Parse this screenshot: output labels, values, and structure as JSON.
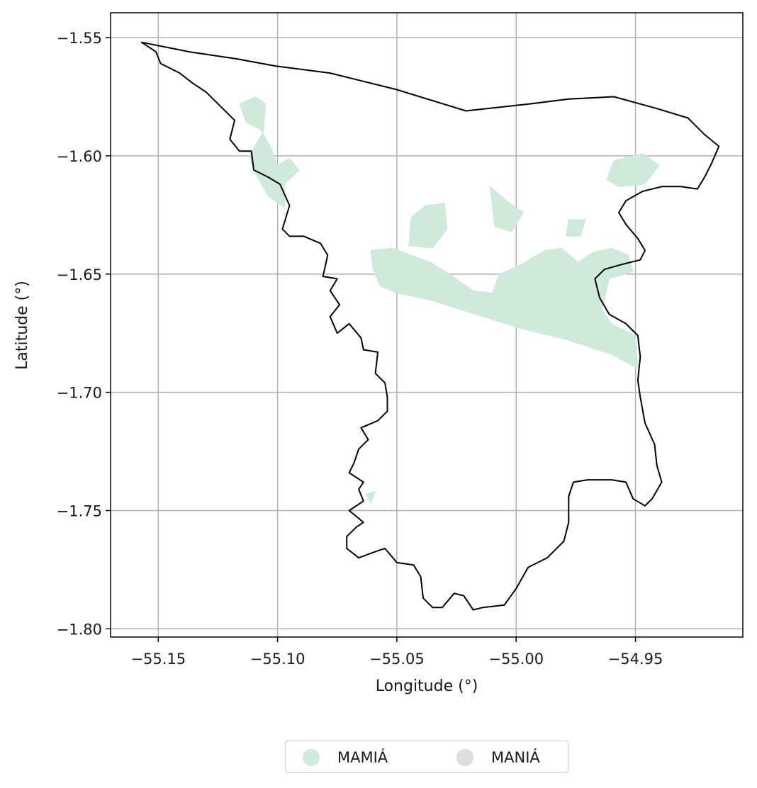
{
  "chart_data": {
    "type": "map",
    "xlabel": "Longitude (°)",
    "ylabel": "Latitude (°)",
    "xlim": [
      -55.17,
      -54.905
    ],
    "ylim": [
      -1.8035,
      -1.5395
    ],
    "x_ticks": [
      -55.15,
      -55.1,
      -55.05,
      -55.0,
      -54.95
    ],
    "x_tick_labels": [
      "−55.15",
      "−55.10",
      "−55.05",
      "−55.00",
      "−54.95"
    ],
    "y_ticks": [
      -1.55,
      -1.6,
      -1.65,
      -1.7,
      -1.75,
      -1.8
    ],
    "y_tick_labels": [
      "−1.55",
      "−1.60",
      "−1.65",
      "−1.70",
      "−1.75",
      "−1.80"
    ],
    "grid": true,
    "legend_placement": "bottom-center, below plot",
    "legend": [
      {
        "label": "MAMIÁ",
        "color": "#cfeadb"
      },
      {
        "label": "MANIÁ",
        "color": "#dddddd"
      }
    ],
    "boundary_color": "#000000",
    "boundary": [
      [
        -55.157,
        -1.552
      ],
      [
        -55.137,
        -1.556
      ],
      [
        -55.117,
        -1.559
      ],
      [
        -55.101,
        -1.562
      ],
      [
        -55.078,
        -1.565
      ],
      [
        -55.05,
        -1.572
      ],
      [
        -55.021,
        -1.581
      ],
      [
        -54.994,
        -1.578
      ],
      [
        -54.978,
        -1.576
      ],
      [
        -54.959,
        -1.575
      ],
      [
        -54.941,
        -1.58
      ],
      [
        -54.928,
        -1.584
      ],
      [
        -54.921,
        -1.591
      ],
      [
        -54.915,
        -1.596
      ],
      [
        -54.918,
        -1.603
      ],
      [
        -54.921,
        -1.609
      ],
      [
        -54.924,
        -1.614
      ],
      [
        -54.931,
        -1.613
      ],
      [
        -54.939,
        -1.613
      ],
      [
        -54.947,
        -1.615
      ],
      [
        -54.954,
        -1.619
      ],
      [
        -54.957,
        -1.624
      ],
      [
        -54.954,
        -1.629
      ],
      [
        -54.949,
        -1.635
      ],
      [
        -54.946,
        -1.64
      ],
      [
        -54.948,
        -1.644
      ],
      [
        -54.956,
        -1.646
      ],
      [
        -54.963,
        -1.648
      ],
      [
        -54.967,
        -1.652
      ],
      [
        -54.965,
        -1.66
      ],
      [
        -54.961,
        -1.667
      ],
      [
        -54.954,
        -1.671
      ],
      [
        -54.949,
        -1.676
      ],
      [
        -54.948,
        -1.685
      ],
      [
        -54.949,
        -1.695
      ],
      [
        -54.948,
        -1.702
      ],
      [
        -54.946,
        -1.713
      ],
      [
        -54.942,
        -1.722
      ],
      [
        -54.941,
        -1.731
      ],
      [
        -54.939,
        -1.738
      ],
      [
        -54.943,
        -1.745
      ],
      [
        -54.946,
        -1.748
      ],
      [
        -54.951,
        -1.745
      ],
      [
        -54.954,
        -1.738
      ],
      [
        -54.96,
        -1.737
      ],
      [
        -54.97,
        -1.737
      ],
      [
        -54.976,
        -1.738
      ],
      [
        -54.978,
        -1.744
      ],
      [
        -54.978,
        -1.755
      ],
      [
        -54.98,
        -1.763
      ],
      [
        -54.987,
        -1.77
      ],
      [
        -54.995,
        -1.774
      ],
      [
        -55.0,
        -1.783
      ],
      [
        -55.005,
        -1.79
      ],
      [
        -55.014,
        -1.791
      ],
      [
        -55.018,
        -1.792
      ],
      [
        -55.022,
        -1.786
      ],
      [
        -55.026,
        -1.785
      ],
      [
        -55.031,
        -1.791
      ],
      [
        -55.035,
        -1.791
      ],
      [
        -55.039,
        -1.787
      ],
      [
        -55.04,
        -1.778
      ],
      [
        -55.043,
        -1.773
      ],
      [
        -55.05,
        -1.772
      ],
      [
        -55.055,
        -1.766
      ],
      [
        -55.058,
        -1.767
      ],
      [
        -55.066,
        -1.77
      ],
      [
        -55.071,
        -1.766
      ],
      [
        -55.071,
        -1.761
      ],
      [
        -55.067,
        -1.757
      ],
      [
        -55.064,
        -1.755
      ],
      [
        -55.07,
        -1.75
      ],
      [
        -55.064,
        -1.746
      ],
      [
        -55.066,
        -1.741
      ],
      [
        -55.064,
        -1.738
      ],
      [
        -55.07,
        -1.734
      ],
      [
        -55.068,
        -1.73
      ],
      [
        -55.066,
        -1.724
      ],
      [
        -55.062,
        -1.72
      ],
      [
        -55.065,
        -1.715
      ],
      [
        -55.058,
        -1.712
      ],
      [
        -55.054,
        -1.708
      ],
      [
        -55.054,
        -1.702
      ],
      [
        -55.055,
        -1.696
      ],
      [
        -55.059,
        -1.692
      ],
      [
        -55.058,
        -1.683
      ],
      [
        -55.064,
        -1.682
      ],
      [
        -55.065,
        -1.677
      ],
      [
        -55.07,
        -1.671
      ],
      [
        -55.075,
        -1.675
      ],
      [
        -55.078,
        -1.668
      ],
      [
        -55.074,
        -1.663
      ],
      [
        -55.078,
        -1.657
      ],
      [
        -55.075,
        -1.652
      ],
      [
        -55.081,
        -1.651
      ],
      [
        -55.079,
        -1.642
      ],
      [
        -55.082,
        -1.637
      ],
      [
        -55.089,
        -1.634
      ],
      [
        -55.095,
        -1.634
      ],
      [
        -55.098,
        -1.631
      ],
      [
        -55.095,
        -1.621
      ],
      [
        -55.099,
        -1.612
      ],
      [
        -55.104,
        -1.609
      ],
      [
        -55.11,
        -1.606
      ],
      [
        -55.111,
        -1.598
      ],
      [
        -55.116,
        -1.598
      ],
      [
        -55.12,
        -1.593
      ],
      [
        -55.118,
        -1.585
      ],
      [
        -55.125,
        -1.578
      ],
      [
        -55.13,
        -1.573
      ],
      [
        -55.136,
        -1.569
      ],
      [
        -55.141,
        -1.565
      ],
      [
        -55.149,
        -1.561
      ],
      [
        -55.151,
        -1.556
      ],
      [
        -55.157,
        -1.552
      ]
    ],
    "regions": [
      {
        "name": "MAMIÁ",
        "color": "#cfeadb",
        "polygons": [
          [
            [
              -55.116,
              -1.578
            ],
            [
              -55.109,
              -1.575
            ],
            [
              -55.105,
              -1.578
            ],
            [
              -55.106,
              -1.59
            ],
            [
              -55.112,
              -1.6
            ],
            [
              -55.109,
              -1.608
            ],
            [
              -55.104,
              -1.617
            ],
            [
              -55.097,
              -1.622
            ],
            [
              -55.097,
              -1.612
            ],
            [
              -55.091,
              -1.606
            ],
            [
              -55.095,
              -1.601
            ],
            [
              -55.1,
              -1.604
            ],
            [
              -55.103,
              -1.596
            ],
            [
              -55.107,
              -1.589
            ],
            [
              -55.113,
              -1.586
            ]
          ],
          [
            [
              -55.061,
              -1.64
            ],
            [
              -55.052,
              -1.639
            ],
            [
              -55.044,
              -1.642
            ],
            [
              -55.036,
              -1.645
            ],
            [
              -55.028,
              -1.65
            ],
            [
              -55.018,
              -1.657
            ],
            [
              -55.01,
              -1.658
            ],
            [
              -55.007,
              -1.65
            ],
            [
              -54.998,
              -1.646
            ],
            [
              -54.988,
              -1.64
            ],
            [
              -54.981,
              -1.639
            ],
            [
              -54.974,
              -1.645
            ],
            [
              -54.968,
              -1.641
            ],
            [
              -54.96,
              -1.639
            ],
            [
              -54.953,
              -1.642
            ],
            [
              -54.951,
              -1.649
            ],
            [
              -54.961,
              -1.652
            ],
            [
              -54.964,
              -1.665
            ],
            [
              -54.96,
              -1.671
            ],
            [
              -54.95,
              -1.676
            ],
            [
              -54.949,
              -1.69
            ],
            [
              -54.96,
              -1.684
            ],
            [
              -54.978,
              -1.678
            ],
            [
              -54.998,
              -1.673
            ],
            [
              -55.017,
              -1.667
            ],
            [
              -55.036,
              -1.661
            ],
            [
              -55.05,
              -1.658
            ],
            [
              -55.057,
              -1.655
            ],
            [
              -55.06,
              -1.648
            ]
          ],
          [
            [
              -55.038,
              -1.621
            ],
            [
              -55.03,
              -1.62
            ],
            [
              -55.029,
              -1.631
            ],
            [
              -55.035,
              -1.639
            ],
            [
              -55.045,
              -1.638
            ],
            [
              -55.044,
              -1.626
            ]
          ],
          [
            [
              -55.011,
              -1.613
            ],
            [
              -55.004,
              -1.619
            ],
            [
              -54.997,
              -1.624
            ],
            [
              -55.002,
              -1.632
            ],
            [
              -55.009,
              -1.63
            ]
          ],
          [
            [
              -54.959,
              -1.602
            ],
            [
              -54.947,
              -1.599
            ],
            [
              -54.94,
              -1.604
            ],
            [
              -54.946,
              -1.612
            ],
            [
              -54.957,
              -1.613
            ],
            [
              -54.962,
              -1.61
            ]
          ],
          [
            [
              -54.978,
              -1.627
            ],
            [
              -54.971,
              -1.627
            ],
            [
              -54.973,
              -1.634
            ],
            [
              -54.979,
              -1.634
            ]
          ],
          [
            [
              -55.063,
              -1.743
            ],
            [
              -55.059,
              -1.742
            ],
            [
              -55.061,
              -1.747
            ]
          ]
        ]
      },
      {
        "name": "MANIÁ",
        "color": "#dddddd",
        "polygons": []
      }
    ]
  }
}
